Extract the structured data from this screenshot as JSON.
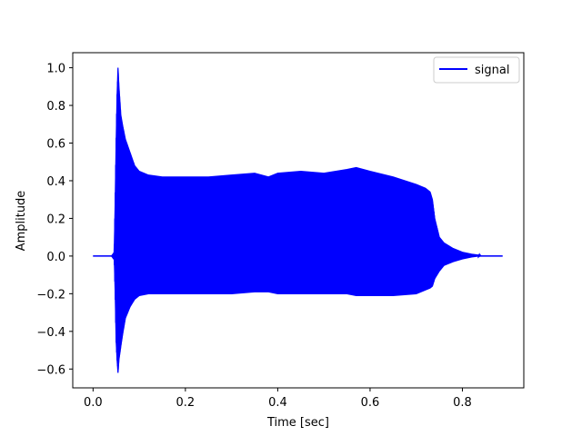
{
  "chart_data": {
    "type": "line",
    "title": "",
    "xlabel": "Time [sec]",
    "ylabel": "Amplitude",
    "xlim": [
      -0.044,
      0.933
    ],
    "ylim": [
      -0.7,
      1.08
    ],
    "xticks": [
      0.0,
      0.2,
      0.4,
      0.6,
      0.8
    ],
    "xtick_labels": [
      "0.0",
      "0.2",
      "0.4",
      "0.6",
      "0.8"
    ],
    "yticks": [
      -0.6,
      -0.4,
      -0.2,
      0.0,
      0.2,
      0.4,
      0.6,
      0.8,
      1.0
    ],
    "ytick_labels": [
      "−0.6",
      "−0.4",
      "−0.2",
      "0.0",
      "0.2",
      "0.4",
      "0.6",
      "0.8",
      "1.0"
    ],
    "grid": false,
    "legend_position": "top-right",
    "series": [
      {
        "name": "signal",
        "color": "#0000ff",
        "description_note": "",
        "envelope": {
          "t": [
            0.0,
            0.04,
            0.046,
            0.048,
            0.05,
            0.052,
            0.054,
            0.056,
            0.06,
            0.065,
            0.07,
            0.08,
            0.09,
            0.1,
            0.12,
            0.15,
            0.2,
            0.25,
            0.3,
            0.35,
            0.38,
            0.4,
            0.45,
            0.5,
            0.55,
            0.57,
            0.6,
            0.65,
            0.7,
            0.72,
            0.73,
            0.735,
            0.74,
            0.75,
            0.76,
            0.78,
            0.8,
            0.82,
            0.835,
            0.84,
            0.887
          ],
          "upper": [
            0.0,
            0.0,
            0.02,
            0.3,
            0.6,
            0.85,
            1.0,
            0.9,
            0.75,
            0.68,
            0.62,
            0.55,
            0.48,
            0.45,
            0.43,
            0.42,
            0.42,
            0.42,
            0.43,
            0.44,
            0.42,
            0.44,
            0.45,
            0.44,
            0.46,
            0.47,
            0.45,
            0.42,
            0.38,
            0.36,
            0.34,
            0.3,
            0.2,
            0.1,
            0.07,
            0.04,
            0.02,
            0.01,
            0.005,
            0.0,
            0.0
          ],
          "lower": [
            0.0,
            0.0,
            -0.02,
            -0.2,
            -0.45,
            -0.55,
            -0.62,
            -0.55,
            -0.48,
            -0.4,
            -0.33,
            -0.27,
            -0.23,
            -0.21,
            -0.2,
            -0.2,
            -0.2,
            -0.2,
            -0.2,
            -0.19,
            -0.19,
            -0.2,
            -0.2,
            -0.2,
            -0.2,
            -0.21,
            -0.21,
            -0.21,
            -0.2,
            -0.18,
            -0.17,
            -0.16,
            -0.12,
            -0.08,
            -0.05,
            -0.03,
            -0.015,
            -0.005,
            0.0,
            0.0,
            0.0
          ]
        }
      }
    ]
  }
}
